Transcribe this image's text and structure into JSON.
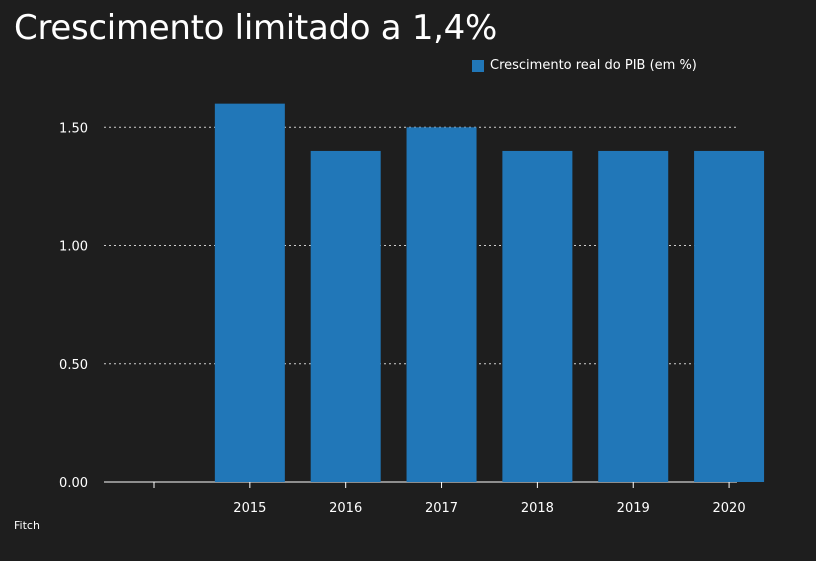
{
  "title": "Crescimento limitado a 1,4%",
  "source": "Fitch",
  "colors": {
    "bar": "#2177b8",
    "background": "#1e1e1e",
    "text": "#ffffff",
    "grid": "#cfcfcf"
  },
  "chart_data": {
    "type": "bar",
    "categories": [
      "",
      "2015",
      "2016",
      "2017",
      "2018",
      "2019",
      "2020"
    ],
    "series": [
      {
        "name": "Crescimento real do PIB (em %)",
        "values": [
          null,
          1.6,
          1.4,
          1.5,
          1.4,
          1.4,
          1.4
        ]
      }
    ],
    "yticks": [
      "0.00",
      "0.50",
      "1.00",
      "1.50"
    ],
    "ylim": [
      0,
      1.7
    ],
    "grid": true,
    "legend": "top-right"
  }
}
